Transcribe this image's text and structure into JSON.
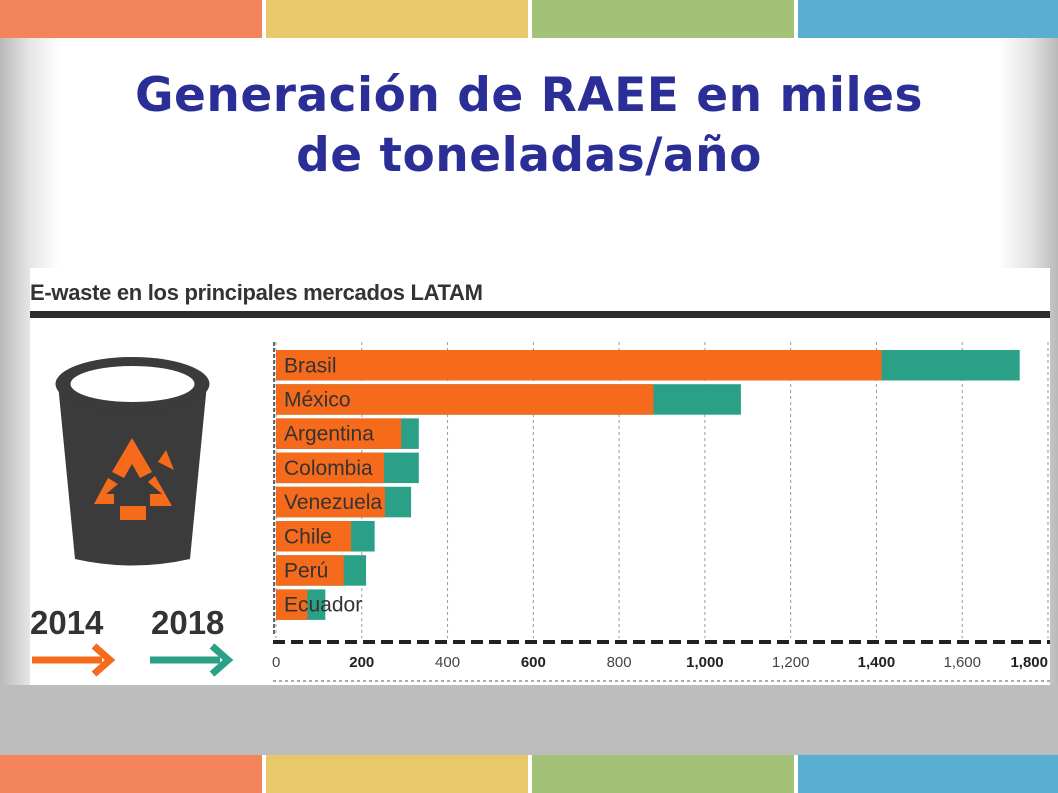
{
  "colors": {
    "band": [
      "#f4845a",
      "#e9c86b",
      "#a3c278",
      "#5aaed2"
    ],
    "title": "#2b2e96",
    "series_2014": "#f66a1c",
    "series_2018": "#2aa186",
    "bin": "#3b3b3b"
  },
  "slide": {
    "title_line1": "Generación de RAEE en miles",
    "title_line2": "de toneladas/año"
  },
  "legend": {
    "year_2014": "2014",
    "year_2018": "2018",
    "icon": "recycle-bin-icon"
  },
  "chart_data": {
    "type": "bar",
    "orientation": "horizontal",
    "stacked": "overlay",
    "title": "E-waste en los principales mercados LATAM",
    "categories": [
      "Brasil",
      "México",
      "Argentina",
      "Colombia",
      "Venezuela",
      "Chile",
      "Perú",
      "Ecuador"
    ],
    "series": [
      {
        "name": "2014",
        "values": [
          1412,
          880,
          292,
          252,
          254,
          175,
          158,
          73
        ]
      },
      {
        "name": "2018",
        "values": [
          1734,
          1084,
          333,
          333,
          315,
          230,
          210,
          115
        ]
      }
    ],
    "xlim": [
      0,
      1800
    ],
    "ticks": [
      "0",
      "200",
      "400",
      "600",
      "800",
      "1,000",
      "1,200",
      "1,400",
      "1,600",
      "1,800"
    ],
    "bold_ticks": [
      "200",
      "600",
      "1,000",
      "1,400",
      "1,800"
    ],
    "grid": true,
    "xlabel": "",
    "ylabel": ""
  }
}
